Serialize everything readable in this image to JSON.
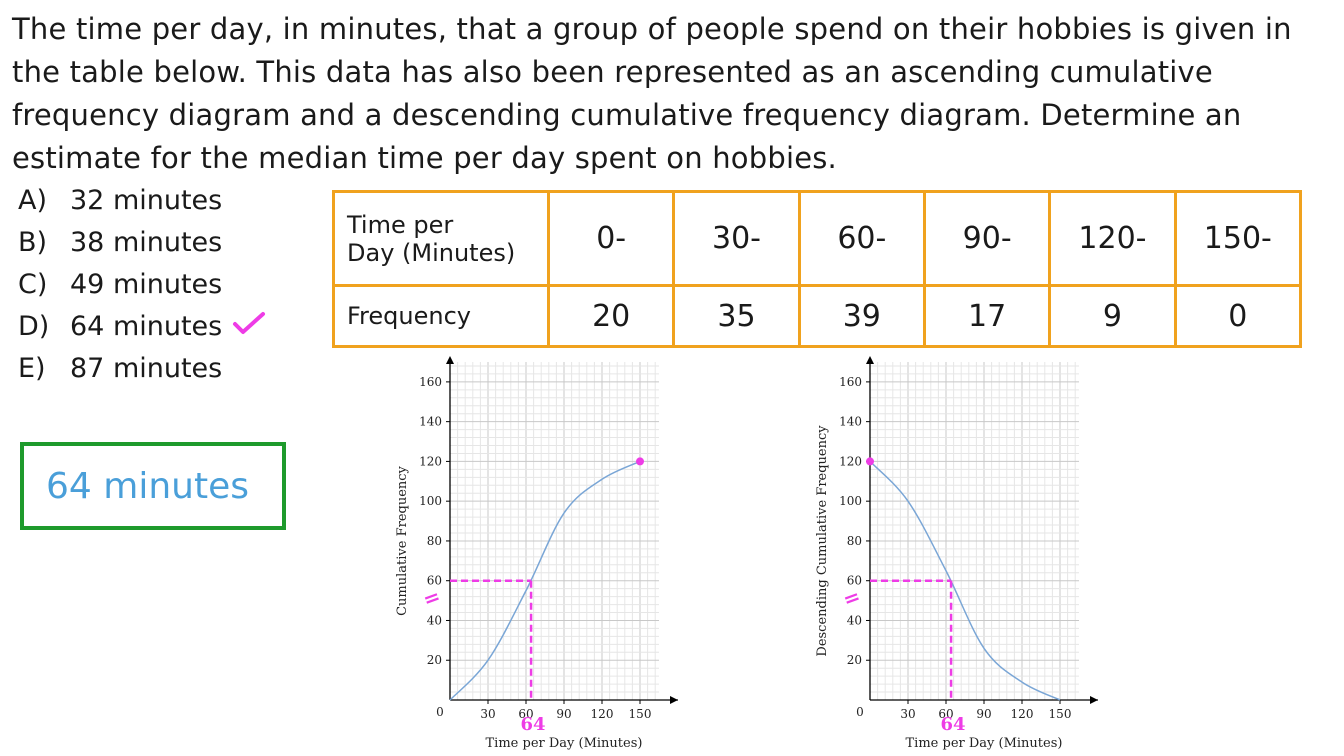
{
  "question": {
    "text": "The time per day, in minutes, that a group of people spend on their hobbies is given in the table below. This data has also been represented as an ascending cumulative frequency diagram and a descending cumulative frequency diagram. Determine an estimate for the median time per day spent on hobbies."
  },
  "options": [
    {
      "key": "A)",
      "label": "32 minutes"
    },
    {
      "key": "B)",
      "label": "38 minutes"
    },
    {
      "key": "C)",
      "label": "49 minutes"
    },
    {
      "key": "D)",
      "label": "64 minutes",
      "correct": true
    },
    {
      "key": "E)",
      "label": "87 minutes"
    }
  ],
  "answer": "64 minutes",
  "colors": {
    "table_border": "#f0a21e",
    "answer_border": "#1e9a2c",
    "answer_text": "#4a9fd9",
    "curve": "#7aa6d6",
    "annotation": "#ee3ce6",
    "grid_minor": "#e6e6e6",
    "grid_major": "#c8c8c8"
  },
  "table": {
    "row_header_1": [
      "Time per",
      "Day (Minutes)"
    ],
    "row_header_2": "Frequency",
    "intervals": [
      "0-",
      "30-",
      "60-",
      "90-",
      "120-",
      "150-"
    ],
    "frequencies": [
      20,
      35,
      39,
      17,
      9,
      0
    ]
  },
  "chart_data": [
    {
      "type": "line",
      "xlabel": "Time per Day (Minutes)",
      "ylabel": "Cumulative Frequency",
      "xlim": [
        0,
        180
      ],
      "ylim": [
        0,
        170
      ],
      "x_ticks": [
        30,
        60,
        90,
        120,
        150
      ],
      "y_ticks": [
        20,
        40,
        60,
        80,
        100,
        120,
        140,
        160
      ],
      "origin_label": "0",
      "grid": true,
      "x": [
        0,
        30,
        60,
        90,
        120,
        150
      ],
      "y": [
        0,
        20,
        55,
        94,
        111,
        120
      ],
      "endpoint": [
        150,
        120
      ],
      "median_y": 60,
      "median_x": 64,
      "median_y_mark": "=",
      "median_x_label": "64"
    },
    {
      "type": "line",
      "xlabel": "Time per Day (Minutes)",
      "ylabel": "Descending Cumulative Frequency",
      "xlim": [
        0,
        180
      ],
      "ylim": [
        0,
        170
      ],
      "x_ticks": [
        30,
        60,
        90,
        120,
        150
      ],
      "y_ticks": [
        20,
        40,
        60,
        80,
        100,
        120,
        140,
        160
      ],
      "origin_label": "0",
      "grid": true,
      "x": [
        0,
        30,
        60,
        90,
        120,
        150
      ],
      "y": [
        120,
        100,
        65,
        26,
        9,
        0
      ],
      "endpoint": [
        0,
        120
      ],
      "median_y": 60,
      "median_x": 64,
      "median_y_mark": "=",
      "median_x_label": "64"
    }
  ]
}
